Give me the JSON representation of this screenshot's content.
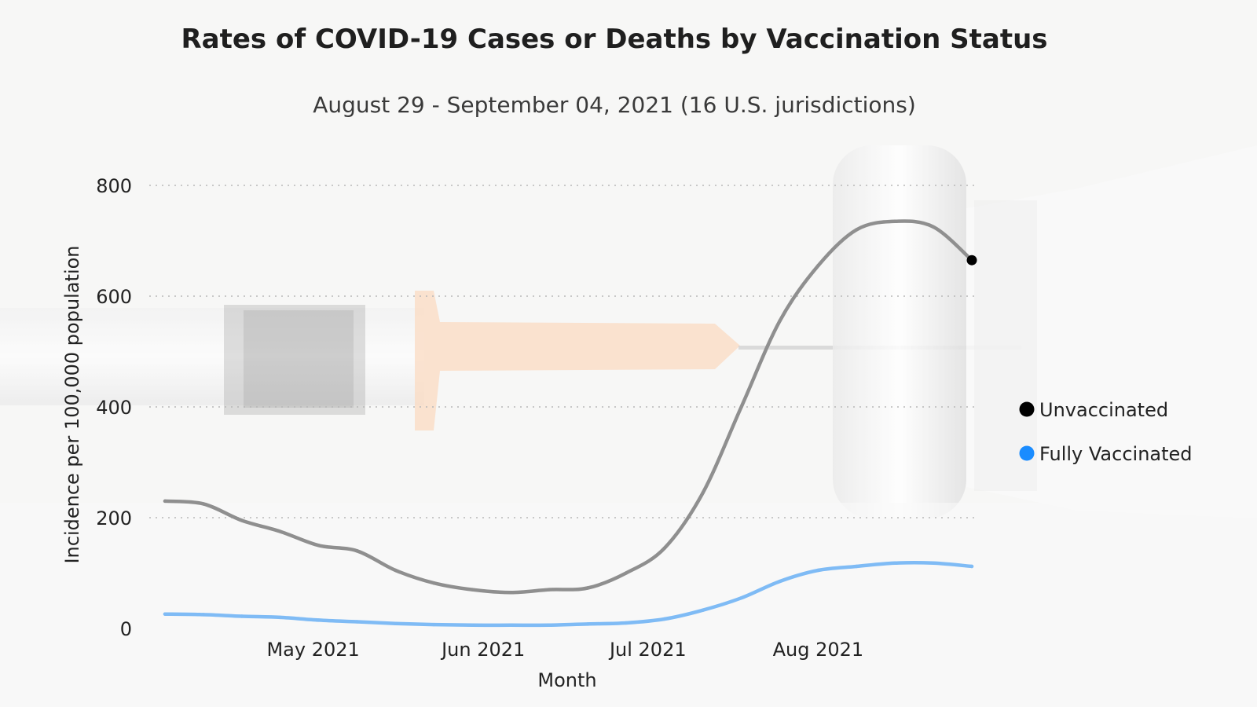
{
  "chart_data": {
    "type": "line",
    "title": "Rates of COVID-19 Cases or Deaths by Vaccination Status",
    "subtitle": "August 29 - September 04, 2021 (16 U.S. jurisdictions)",
    "xlabel": "Month",
    "ylabel": "Incidence per 100,000 population",
    "x": [
      "2021-04-04",
      "2021-04-11",
      "2021-04-18",
      "2021-04-25",
      "2021-05-02",
      "2021-05-09",
      "2021-05-16",
      "2021-05-23",
      "2021-05-30",
      "2021-06-06",
      "2021-06-13",
      "2021-06-20",
      "2021-06-27",
      "2021-07-04",
      "2021-07-11",
      "2021-07-18",
      "2021-07-25",
      "2021-08-01",
      "2021-08-08",
      "2021-08-15",
      "2021-08-22",
      "2021-08-29"
    ],
    "x_ticks": [
      "May 2021",
      "Jun 2021",
      "Jul 2021",
      "Aug 2021"
    ],
    "y_ticks": [
      0,
      200,
      400,
      600,
      800
    ],
    "ylim": [
      0,
      800
    ],
    "grid": true,
    "legend_position": "right",
    "series": [
      {
        "name": "Unvaccinated",
        "color": "#8f8f8f",
        "marker_color": "#000000",
        "values": [
          230,
          225,
          195,
          175,
          150,
          140,
          105,
          82,
          70,
          65,
          70,
          73,
          100,
          145,
          245,
          400,
          555,
          655,
          720,
          735,
          725,
          665
        ]
      },
      {
        "name": "Fully Vaccinated",
        "color": "#7fbbf5",
        "marker_color": "#1a8cff",
        "values": [
          26,
          25,
          22,
          20,
          15,
          12,
          9,
          7,
          6,
          6,
          6,
          8,
          10,
          17,
          33,
          55,
          85,
          105,
          112,
          118,
          118,
          112
        ]
      }
    ]
  }
}
